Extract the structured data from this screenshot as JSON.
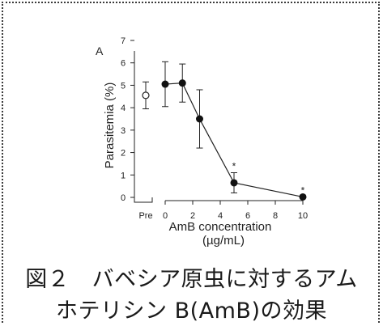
{
  "panel_label": "A",
  "caption": {
    "line1": "図２　バベシア原虫に対するアム",
    "line2": "ホテリシン B(AmB)の効果"
  },
  "chart_data": {
    "type": "line",
    "ylabel": "Parasitemia (%)",
    "xlabel_line1": "AmB concentration",
    "xlabel_line2": "(µg/mL)",
    "ylim": [
      0,
      7
    ],
    "yticks": [
      "0",
      "1",
      "2",
      "3",
      "4",
      "5",
      "6",
      "7"
    ],
    "xlim": [
      0,
      10
    ],
    "xticks": [
      "0",
      "2",
      "4",
      "6",
      "8",
      "10"
    ],
    "pre": {
      "label": "Pre",
      "y": 4.55,
      "err": 0.6
    },
    "series": [
      {
        "points": [
          {
            "x": 0,
            "y": 5.05,
            "err": 1.0
          },
          {
            "x": 1.25,
            "y": 5.1,
            "err": 0.85
          },
          {
            "x": 2.5,
            "y": 3.5,
            "err": 1.3
          },
          {
            "x": 5,
            "y": 0.65,
            "err": 0.45
          },
          {
            "x": 10,
            "y": 0.02,
            "err": 0
          }
        ]
      }
    ],
    "significance": [
      {
        "x": 5,
        "label": "*"
      },
      {
        "x": 10,
        "label": "*"
      }
    ]
  }
}
